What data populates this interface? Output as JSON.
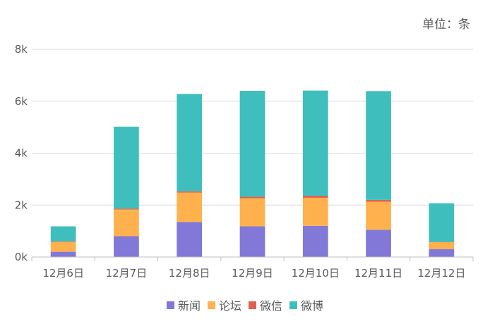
{
  "unit_label": "单位：条",
  "chart_data": {
    "type": "bar",
    "stacked": true,
    "categories": [
      "12月6日",
      "12月7日",
      "12月8日",
      "12月9日",
      "12月10日",
      "12月11日",
      "12月12日"
    ],
    "series": [
      {
        "name": "新闻",
        "color": "#8178D8",
        "values": [
          200,
          800,
          1350,
          1180,
          1200,
          1050,
          300
        ]
      },
      {
        "name": "论坛",
        "color": "#FFB14E",
        "values": [
          380,
          1030,
          1130,
          1080,
          1080,
          1080,
          270
        ]
      },
      {
        "name": "微信",
        "color": "#E0604F",
        "values": [
          20,
          30,
          50,
          60,
          80,
          70,
          10
        ]
      },
      {
        "name": "微博",
        "color": "#3EBFBD",
        "values": [
          580,
          3160,
          3750,
          4080,
          4050,
          4190,
          1490
        ]
      }
    ],
    "ylim": [
      0,
      8000
    ],
    "yticks": [
      0,
      2000,
      4000,
      6000,
      8000
    ],
    "ytick_labels": [
      "0k",
      "2k",
      "4k",
      "6k",
      "8k"
    ],
    "grid": true,
    "legend_position": "bottom"
  }
}
